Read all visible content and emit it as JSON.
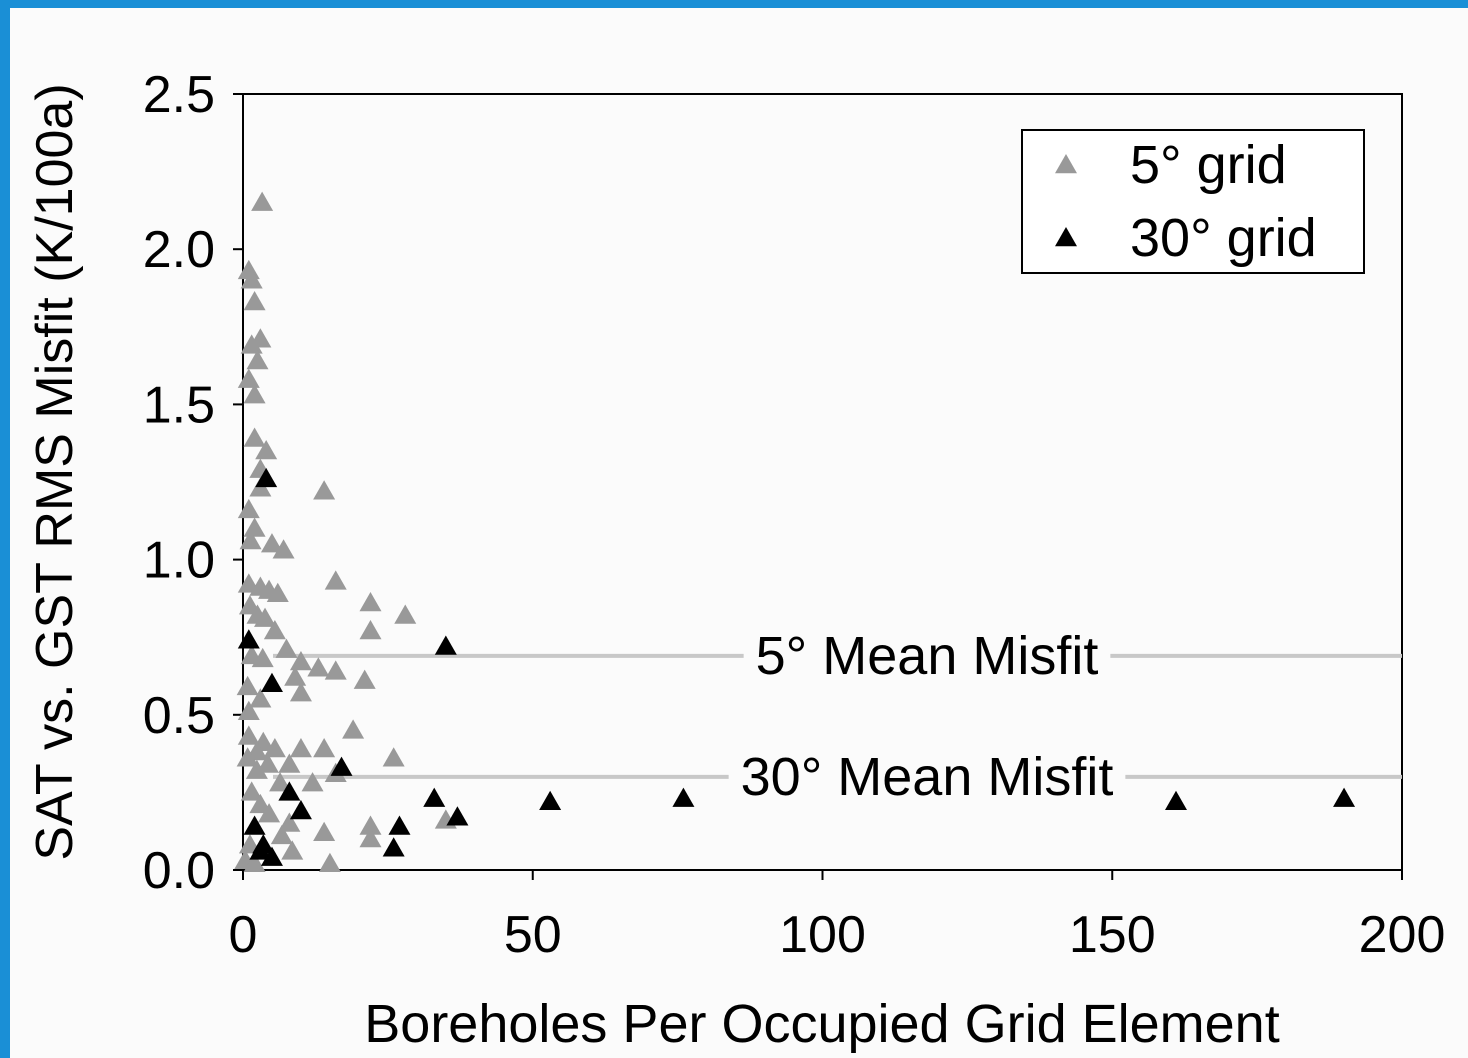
{
  "chart_data": {
    "type": "scatter",
    "xlabel": "Boreholes Per Occupied Grid Element",
    "ylabel": "SAT vs. GST RMS Misfit (K/100a)",
    "xlim": [
      0,
      200
    ],
    "ylim": [
      0,
      2.5
    ],
    "xticks": [
      0,
      50,
      100,
      150,
      200
    ],
    "yticks": [
      {
        "value": 0,
        "label": "0.0"
      },
      0.5,
      {
        "value": 1,
        "label": "1.0"
      },
      1.5,
      {
        "value": 2,
        "label": "2.0"
      },
      2.5
    ],
    "legend_position": "upper right",
    "series": [
      {
        "name": "5° grid",
        "color": "#999999",
        "x": [
          3.3,
          1,
          1.5,
          2,
          3,
          1.5,
          2.5,
          1,
          2,
          2,
          4,
          3,
          3,
          14,
          1,
          2,
          1.3,
          5,
          7,
          16,
          1,
          3,
          4.5,
          6,
          22,
          28,
          1.2,
          2.5,
          3.8,
          22,
          5.5,
          7.5,
          1.5,
          3.4,
          10,
          13,
          16,
          9,
          21,
          0.8,
          10,
          3,
          1,
          19,
          1,
          3.5,
          5.5,
          14,
          10,
          2.4,
          0.8,
          26,
          4.3,
          8,
          2.4,
          16,
          6.4,
          12,
          1.5,
          3,
          4.5,
          35,
          8,
          22,
          14,
          6.7,
          22,
          1.2,
          8.5,
          0.4,
          15,
          2
        ],
        "y": [
          2.15,
          1.93,
          1.9,
          1.83,
          1.71,
          1.69,
          1.64,
          1.58,
          1.53,
          1.39,
          1.35,
          1.29,
          1.23,
          1.22,
          1.16,
          1.1,
          1.06,
          1.05,
          1.03,
          0.93,
          0.92,
          0.91,
          0.9,
          0.89,
          0.86,
          0.82,
          0.85,
          0.82,
          0.81,
          0.77,
          0.77,
          0.71,
          0.69,
          0.68,
          0.67,
          0.65,
          0.64,
          0.62,
          0.61,
          0.59,
          0.57,
          0.55,
          0.51,
          0.45,
          0.43,
          0.41,
          0.39,
          0.39,
          0.39,
          0.38,
          0.36,
          0.36,
          0.34,
          0.34,
          0.32,
          0.31,
          0.28,
          0.28,
          0.25,
          0.21,
          0.18,
          0.16,
          0.15,
          0.14,
          0.12,
          0.11,
          0.1,
          0.08,
          0.06,
          0.03,
          0.02,
          0.02
        ]
      },
      {
        "name": "30° grid",
        "color": "#000000",
        "x": [
          4,
          1,
          35,
          5,
          17,
          8,
          10,
          33,
          37,
          53,
          76,
          161,
          190,
          27,
          26,
          2,
          3,
          5,
          3.5
        ],
        "y": [
          1.26,
          0.74,
          0.72,
          0.6,
          0.33,
          0.25,
          0.19,
          0.23,
          0.17,
          0.22,
          0.23,
          0.22,
          0.23,
          0.14,
          0.07,
          0.14,
          0.06,
          0.04,
          0.08
        ]
      }
    ],
    "reference_lines": [
      {
        "label": "5° Mean Misfit",
        "value": 0.69
      },
      {
        "label": "30° Mean Misfit",
        "value": 0.3
      }
    ]
  }
}
